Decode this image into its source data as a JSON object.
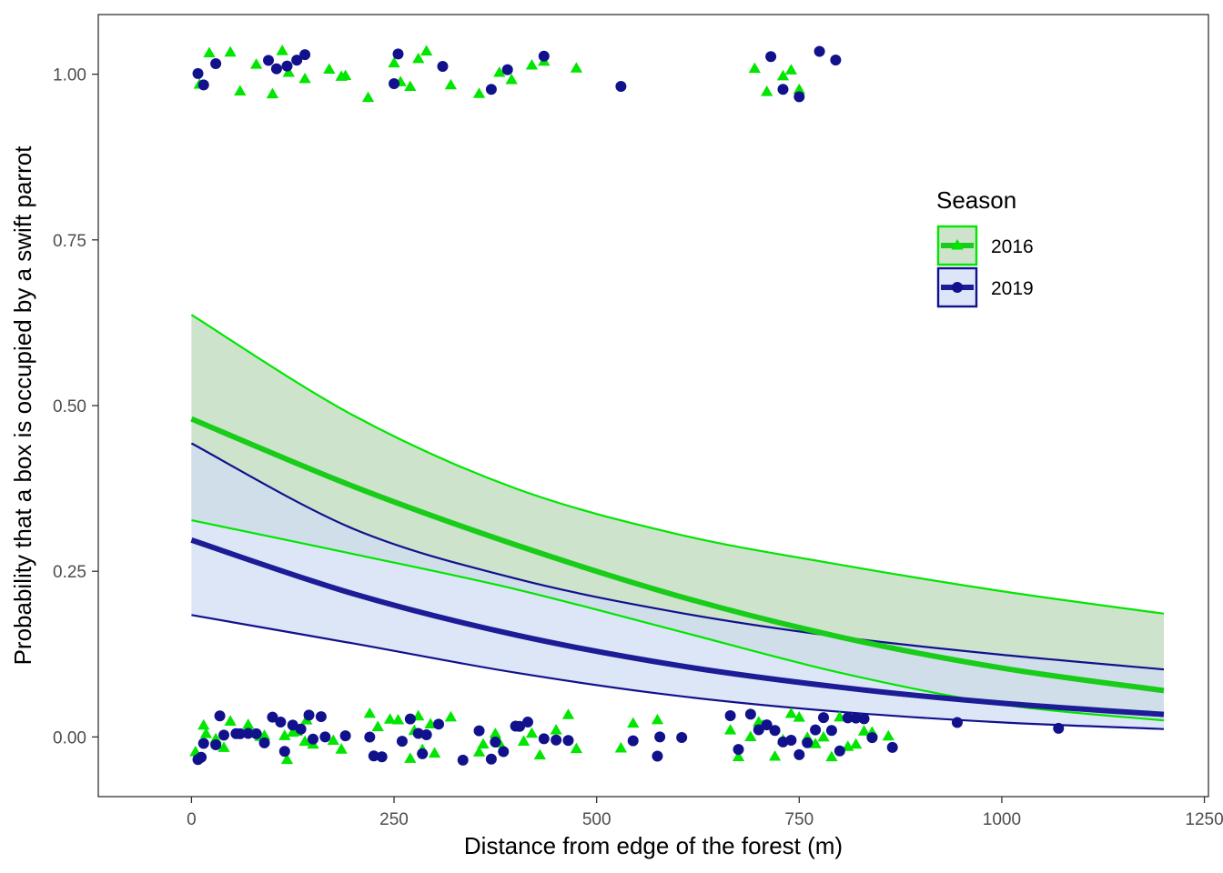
{
  "chart_data": {
    "type": "line",
    "title": "",
    "xlabel": "Distance from edge of the forest (m)",
    "ylabel": "Probability that a box is occupied by a swift parrot",
    "xlim": [
      -115,
      1255
    ],
    "ylim": [
      -0.09,
      1.09
    ],
    "x_ticks": [
      0,
      250,
      500,
      750,
      1000,
      1250
    ],
    "y_ticks": [
      0,
      0.25,
      0.5,
      0.75,
      1.0
    ],
    "x_tick_labels": [
      "0",
      "250",
      "500",
      "750",
      "1000",
      "1250"
    ],
    "y_tick_labels": [
      "0.00",
      "0.25",
      "0.50",
      "0.75",
      "1.00"
    ],
    "grid": false,
    "legend": {
      "title": "Season",
      "position": "right-upper",
      "entries": [
        "2016",
        "2019"
      ]
    },
    "series": [
      {
        "name": "2016",
        "color": "#00e600",
        "ribbon_fill": "#cde3cc",
        "marker": "triangle",
        "curve": {
          "x": [
            0,
            200,
            400,
            600,
            800,
            1000,
            1200
          ],
          "fit": [
            0.48,
            0.378,
            0.29,
            0.213,
            0.151,
            0.104,
            0.07
          ],
          "lower": [
            0.327,
            0.276,
            0.223,
            0.16,
            0.097,
            0.049,
            0.025
          ],
          "upper": [
            0.637,
            0.485,
            0.375,
            0.306,
            0.26,
            0.22,
            0.186
          ]
        },
        "points_x": [
          5,
          15,
          18,
          30,
          40,
          48,
          70,
          85,
          90,
          115,
          118,
          125,
          130,
          140,
          142,
          150,
          175,
          185,
          220,
          230,
          245,
          255,
          270,
          275,
          280,
          285,
          295,
          300,
          320,
          355,
          360,
          375,
          380,
          410,
          420,
          430,
          450,
          465,
          475,
          530,
          545,
          575,
          665,
          675,
          690,
          700,
          705,
          720,
          730,
          740,
          750,
          760,
          770,
          780,
          790,
          800,
          810,
          820,
          830,
          840,
          860,
          10,
          22,
          48,
          60,
          80,
          100,
          112,
          120,
          140,
          170,
          185,
          190,
          218,
          250,
          258,
          270,
          280,
          290,
          320,
          355,
          380,
          395,
          420,
          435,
          475,
          695,
          710,
          730,
          740,
          750
        ],
        "points_y": [
          0,
          0,
          0,
          0,
          0,
          0,
          0,
          0,
          0,
          0,
          0,
          0,
          0,
          0,
          0,
          0,
          0,
          0,
          0,
          0,
          0,
          0,
          0,
          0,
          0,
          0,
          0,
          0,
          0,
          0,
          0,
          0,
          0,
          0,
          0,
          0,
          0,
          0,
          0,
          0,
          0,
          0,
          0,
          0,
          0,
          0,
          0,
          0,
          0,
          0,
          0,
          0,
          0,
          0,
          0,
          0,
          0,
          0,
          0,
          0,
          0,
          1,
          1,
          1,
          1,
          1,
          1,
          1,
          1,
          1,
          1,
          1,
          1,
          1,
          1,
          1,
          1,
          1,
          1,
          1,
          1,
          1,
          1,
          1,
          1,
          1,
          1,
          1,
          1,
          1,
          1
        ]
      },
      {
        "name": "2019",
        "color": "#11118c",
        "ribbon_fill": "#dde6f8",
        "marker": "circle",
        "curve": {
          "x": [
            0,
            200,
            400,
            600,
            800,
            1000,
            1200
          ],
          "fit": [
            0.297,
            0.216,
            0.154,
            0.108,
            0.075,
            0.051,
            0.034
          ],
          "lower": [
            0.184,
            0.141,
            0.097,
            0.062,
            0.038,
            0.022,
            0.012
          ],
          "upper": [
            0.443,
            0.314,
            0.239,
            0.188,
            0.151,
            0.124,
            0.102
          ]
        },
        "points_x": [
          8,
          12,
          15,
          30,
          35,
          40,
          55,
          60,
          70,
          80,
          90,
          100,
          110,
          115,
          125,
          135,
          145,
          150,
          160,
          165,
          190,
          220,
          225,
          235,
          260,
          270,
          280,
          285,
          290,
          305,
          335,
          355,
          370,
          375,
          385,
          400,
          405,
          415,
          435,
          450,
          465,
          545,
          575,
          578,
          605,
          665,
          675,
          690,
          700,
          710,
          720,
          730,
          740,
          750,
          760,
          770,
          780,
          790,
          800,
          810,
          820,
          830,
          840,
          865,
          945,
          1070,
          8,
          15,
          30,
          95,
          105,
          118,
          130,
          140,
          250,
          255,
          310,
          370,
          390,
          435,
          530,
          715,
          730,
          750,
          775,
          795
        ],
        "points_y": [
          0,
          0,
          0,
          0,
          0,
          0,
          0,
          0,
          0,
          0,
          0,
          0,
          0,
          0,
          0,
          0,
          0,
          0,
          0,
          0,
          0,
          0,
          0,
          0,
          0,
          0,
          0,
          0,
          0,
          0,
          0,
          0,
          0,
          0,
          0,
          0,
          0,
          0,
          0,
          0,
          0,
          0,
          0,
          0,
          0,
          0,
          0,
          0,
          0,
          0,
          0,
          0,
          0,
          0,
          0,
          0,
          0,
          0,
          0,
          0,
          0,
          0,
          0,
          0,
          0,
          0,
          1,
          1,
          1,
          1,
          1,
          1,
          1,
          1,
          1,
          1,
          1,
          1,
          1,
          1,
          1,
          1,
          1,
          1,
          1,
          1
        ]
      }
    ]
  }
}
